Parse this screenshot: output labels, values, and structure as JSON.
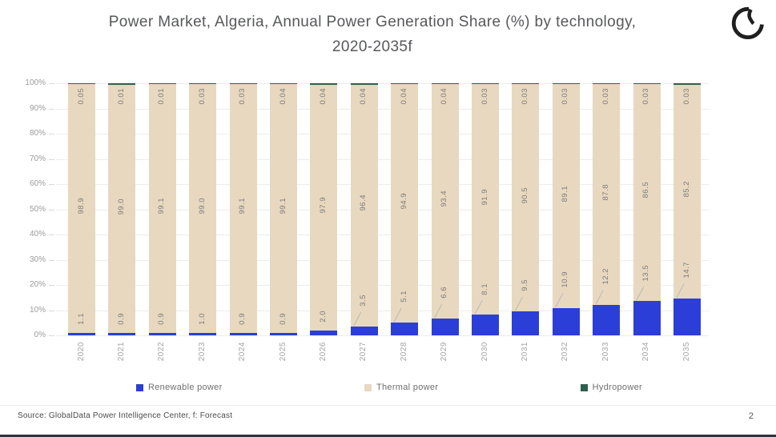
{
  "title": {
    "line1": "Power Market, Algeria, Annual Power Generation Share (%) by technology,",
    "line2": "2020-2035f"
  },
  "footer": {
    "source": "Source: GlobalData Power Intelligence Center, f: Forecast",
    "page": "2"
  },
  "colors": {
    "renewable": "#2c3ed8",
    "thermal": "#e7d8bf",
    "hydro": "#2e5f50",
    "grid": "#ececec",
    "axis_text": "#9b9b9b",
    "bar_label_text": "#7d7d7d"
  },
  "chart_data": {
    "type": "bar",
    "stacked": true,
    "title": "Power Market, Algeria, Annual Power Generation Share (%) by technology, 2020-2035f",
    "xlabel": "",
    "ylabel": "",
    "ylim": [
      0,
      100
    ],
    "ytick_step": 10,
    "yticks": [
      "0%",
      "10%",
      "20%",
      "30%",
      "40%",
      "50%",
      "60%",
      "70%",
      "80%",
      "90%",
      "100%"
    ],
    "grid": true,
    "legend_position": "bottom",
    "categories": [
      "2020",
      "2021",
      "2022",
      "2023",
      "2024",
      "2025",
      "2026",
      "2027",
      "2028",
      "2029",
      "2030",
      "2031",
      "2032",
      "2033",
      "2034",
      "2035"
    ],
    "series": [
      {
        "name": "Renewable power",
        "color": "#2c3ed8",
        "decimals": 1,
        "values": [
          1.1,
          0.9,
          0.9,
          1.0,
          0.9,
          0.9,
          2.0,
          3.5,
          5.1,
          6.6,
          8.1,
          9.5,
          10.9,
          12.2,
          13.5,
          14.7
        ]
      },
      {
        "name": "Thermal power",
        "color": "#e7d8bf",
        "decimals": 1,
        "values": [
          98.9,
          99.0,
          99.1,
          99.0,
          99.1,
          99.1,
          97.9,
          96.4,
          94.9,
          93.4,
          91.9,
          90.5,
          89.1,
          87.8,
          86.5,
          85.2
        ]
      },
      {
        "name": "Hydropower",
        "color": "#2e5f50",
        "decimals": 2,
        "values": [
          0.05,
          0.01,
          0.01,
          0.03,
          0.03,
          0.04,
          0.04,
          0.04,
          0.04,
          0.04,
          0.03,
          0.03,
          0.03,
          0.03,
          0.03,
          0.03
        ]
      }
    ]
  }
}
